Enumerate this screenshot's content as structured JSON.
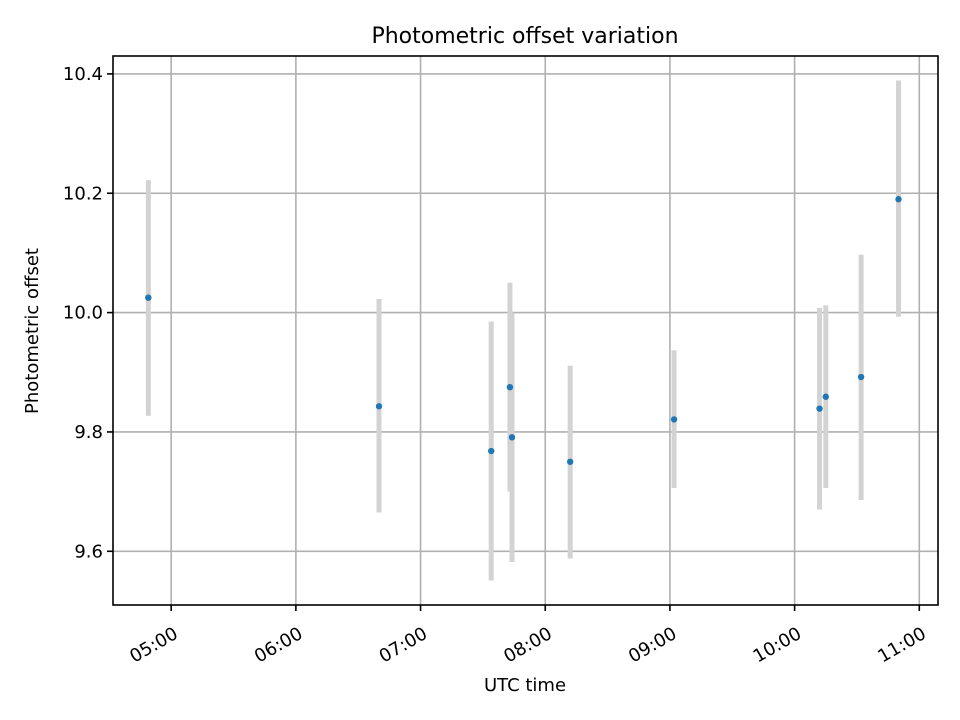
{
  "chart_data": {
    "type": "scatter",
    "title": "Photometric offset variation",
    "xlabel": "UTC time",
    "ylabel": "Photometric offset",
    "x_ticks": [
      "05:00",
      "06:00",
      "07:00",
      "08:00",
      "09:00",
      "10:00",
      "11:00"
    ],
    "y_ticks": [
      "9.6",
      "9.8",
      "10.0",
      "10.2",
      "10.4"
    ],
    "xlim": [
      "04:32",
      "11:09"
    ],
    "ylim": [
      9.51,
      10.43
    ],
    "grid": true,
    "series": [
      {
        "points": [
          {
            "x": "04:49",
            "y": 10.025,
            "err_low": 9.827,
            "err_high": 10.222
          },
          {
            "x": "06:40",
            "y": 9.843,
            "err_low": 9.665,
            "err_high": 10.023
          },
          {
            "x": "07:34",
            "y": 9.768,
            "err_low": 9.551,
            "err_high": 9.985
          },
          {
            "x": "07:43",
            "y": 9.875,
            "err_low": 9.7,
            "err_high": 10.05
          },
          {
            "x": "07:44",
            "y": 9.791,
            "err_low": 9.582,
            "err_high": 10.0
          },
          {
            "x": "08:12",
            "y": 9.75,
            "err_low": 9.588,
            "err_high": 9.911
          },
          {
            "x": "09:02",
            "y": 9.821,
            "err_low": 9.706,
            "err_high": 9.937
          },
          {
            "x": "10:12",
            "y": 9.839,
            "err_low": 9.67,
            "err_high": 10.008
          },
          {
            "x": "10:15",
            "y": 9.859,
            "err_low": 9.706,
            "err_high": 10.012
          },
          {
            "x": "10:32",
            "y": 9.892,
            "err_low": 9.686,
            "err_high": 10.097
          },
          {
            "x": "10:50",
            "y": 10.19,
            "err_low": 9.993,
            "err_high": 10.389
          }
        ]
      }
    ],
    "colors": {
      "point": "#1f77b4",
      "errorbar": "#d3d3d3"
    }
  }
}
